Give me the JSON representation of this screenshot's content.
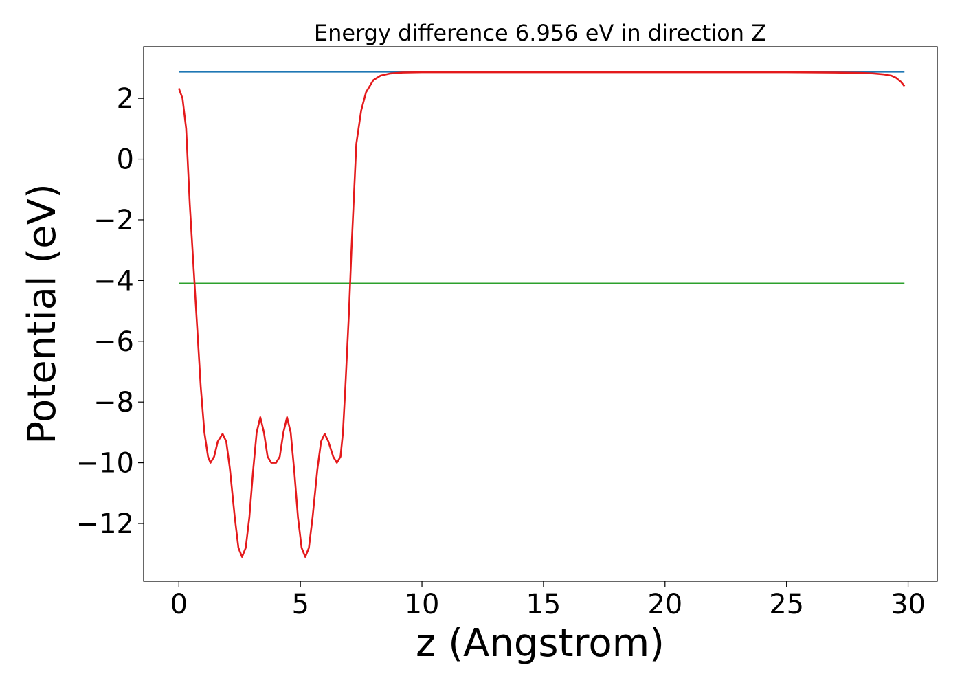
{
  "chart_data": {
    "type": "line",
    "title": "Energy difference 6.956 eV in direction Z",
    "xlabel": "z (Angstrom)",
    "ylabel": "Potential (eV)",
    "xlim": [
      -1.45,
      31.2
    ],
    "ylim": [
      -13.9,
      3.7
    ],
    "xticks": [
      0,
      5,
      10,
      15,
      20,
      25,
      30
    ],
    "yticks": [
      2,
      0,
      -2,
      -4,
      -6,
      -8,
      -10,
      -12
    ],
    "xtick_labels": [
      "0",
      "5",
      "10",
      "15",
      "20",
      "25",
      "30"
    ],
    "ytick_labels": [
      "2",
      "0",
      "−2",
      "−4",
      "−6",
      "−8",
      "−10",
      "−12"
    ],
    "grid": false,
    "legend": "none",
    "series": [
      {
        "color": "#1f77b4",
        "points": [
          [
            0,
            2.87
          ],
          [
            29.85,
            2.87
          ]
        ]
      },
      {
        "color": "#2ca02c",
        "points": [
          [
            0,
            -4.09
          ],
          [
            29.85,
            -4.09
          ]
        ]
      },
      {
        "color": "#e41a1c",
        "points": [
          [
            0.0,
            2.33
          ],
          [
            0.15,
            2.0
          ],
          [
            0.3,
            1.0
          ],
          [
            0.45,
            -1.5
          ],
          [
            0.6,
            -3.5
          ],
          [
            0.75,
            -5.5
          ],
          [
            0.9,
            -7.5
          ],
          [
            1.05,
            -9.0
          ],
          [
            1.2,
            -9.8
          ],
          [
            1.3,
            -10.0
          ],
          [
            1.45,
            -9.8
          ],
          [
            1.6,
            -9.3
          ],
          [
            1.8,
            -9.05
          ],
          [
            1.95,
            -9.3
          ],
          [
            2.1,
            -10.2
          ],
          [
            2.3,
            -11.8
          ],
          [
            2.45,
            -12.8
          ],
          [
            2.6,
            -13.1
          ],
          [
            2.75,
            -12.8
          ],
          [
            2.9,
            -11.8
          ],
          [
            3.05,
            -10.3
          ],
          [
            3.2,
            -9.0
          ],
          [
            3.35,
            -8.5
          ],
          [
            3.5,
            -9.0
          ],
          [
            3.65,
            -9.8
          ],
          [
            3.8,
            -10.0
          ],
          [
            4.0,
            -10.0
          ],
          [
            4.15,
            -9.8
          ],
          [
            4.3,
            -9.0
          ],
          [
            4.45,
            -8.5
          ],
          [
            4.6,
            -9.0
          ],
          [
            4.75,
            -10.3
          ],
          [
            4.9,
            -11.8
          ],
          [
            5.05,
            -12.8
          ],
          [
            5.2,
            -13.1
          ],
          [
            5.35,
            -12.8
          ],
          [
            5.5,
            -11.8
          ],
          [
            5.7,
            -10.2
          ],
          [
            5.85,
            -9.3
          ],
          [
            6.0,
            -9.05
          ],
          [
            6.15,
            -9.3
          ],
          [
            6.35,
            -9.8
          ],
          [
            6.5,
            -10.0
          ],
          [
            6.65,
            -9.8
          ],
          [
            6.75,
            -9.0
          ],
          [
            6.85,
            -7.5
          ],
          [
            7.0,
            -5.0
          ],
          [
            7.1,
            -3.0
          ],
          [
            7.3,
            0.5
          ],
          [
            7.5,
            1.6
          ],
          [
            7.7,
            2.2
          ],
          [
            8.0,
            2.6
          ],
          [
            8.3,
            2.75
          ],
          [
            8.7,
            2.82
          ],
          [
            9.2,
            2.85
          ],
          [
            10.0,
            2.86
          ],
          [
            12.0,
            2.86
          ],
          [
            15.0,
            2.86
          ],
          [
            18.0,
            2.86
          ],
          [
            20.0,
            2.86
          ],
          [
            22.0,
            2.86
          ],
          [
            25.0,
            2.86
          ],
          [
            27.0,
            2.85
          ],
          [
            28.0,
            2.84
          ],
          [
            28.6,
            2.82
          ],
          [
            29.0,
            2.79
          ],
          [
            29.3,
            2.75
          ],
          [
            29.5,
            2.68
          ],
          [
            29.7,
            2.55
          ],
          [
            29.85,
            2.4
          ]
        ]
      }
    ]
  }
}
